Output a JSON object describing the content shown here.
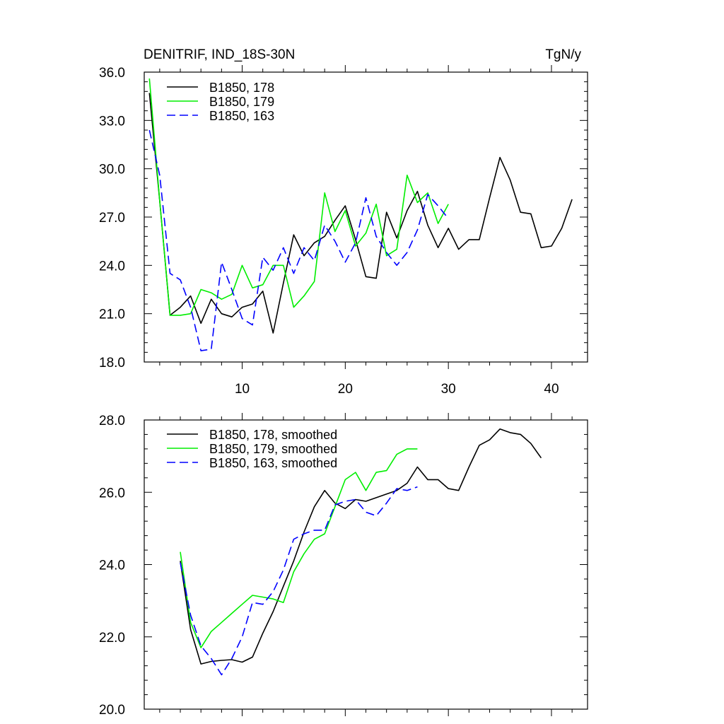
{
  "chart_data": [
    {
      "type": "line",
      "title": "DENITRIF, IND_18S-30N",
      "units": "TgN/y",
      "xlabel": "",
      "ylabel": "",
      "xlim": [
        0.5,
        43.5
      ],
      "ylim": [
        18.0,
        36.0
      ],
      "xticks": [
        10,
        20,
        30,
        40
      ],
      "xtick_labels": [
        "10",
        "20",
        "30",
        "40"
      ],
      "yticks": [
        18,
        21,
        24,
        27,
        30,
        33,
        36
      ],
      "ytick_labels": [
        "18.0",
        "21.0",
        "24.0",
        "27.0",
        "30.0",
        "33.0",
        "36.0"
      ],
      "grid": false,
      "legend_position": "top-left",
      "series": [
        {
          "name": "B1850, 178",
          "color": "#000000",
          "dash": "solid",
          "x": [
            1,
            2,
            3,
            4,
            5,
            6,
            7,
            8,
            9,
            10,
            11,
            12,
            13,
            14,
            15,
            16,
            17,
            18,
            19,
            20,
            21,
            22,
            23,
            24,
            25,
            26,
            27,
            28,
            29,
            30,
            31,
            32,
            33,
            34,
            35,
            36,
            37,
            38,
            39,
            40,
            41,
            42
          ],
          "values": [
            34.7,
            28.0,
            20.9,
            21.4,
            22.1,
            20.4,
            21.9,
            21.0,
            20.8,
            21.4,
            21.6,
            22.4,
            19.8,
            22.9,
            25.9,
            24.6,
            25.4,
            25.8,
            26.8,
            27.7,
            25.6,
            23.3,
            23.2,
            27.3,
            25.7,
            27.4,
            28.6,
            26.5,
            25.1,
            26.3,
            25.0,
            25.6,
            25.6,
            28.2,
            30.7,
            29.3,
            27.3,
            27.2,
            25.1,
            25.2,
            26.3,
            28.1
          ]
        },
        {
          "name": "B1850, 179",
          "color": "#00ee00",
          "dash": "solid",
          "x": [
            1,
            2,
            3,
            4,
            5,
            6,
            7,
            8,
            9,
            10,
            11,
            12,
            13,
            14,
            15,
            16,
            17,
            18,
            19,
            20,
            21,
            22,
            23,
            24,
            25,
            26,
            27,
            28,
            29,
            30
          ],
          "values": [
            35.6,
            28.0,
            20.9,
            20.9,
            21.0,
            22.5,
            22.3,
            21.9,
            22.2,
            24.0,
            22.6,
            22.8,
            24.0,
            24.0,
            21.4,
            22.1,
            23.0,
            28.5,
            26.1,
            27.4,
            25.2,
            26.0,
            27.8,
            24.6,
            25.0,
            29.6,
            27.9,
            28.5,
            26.6,
            27.8
          ]
        },
        {
          "name": "B1850, 163",
          "color": "#0000ff",
          "dash": "dashed",
          "x": [
            1,
            2,
            3,
            4,
            5,
            6,
            7,
            8,
            9,
            10,
            11,
            12,
            13,
            14,
            15,
            16,
            17,
            18,
            19,
            20,
            21,
            22,
            23,
            24,
            25,
            26,
            27,
            28,
            29,
            30
          ],
          "values": [
            32.4,
            29.6,
            23.5,
            23.1,
            21.4,
            18.7,
            18.8,
            24.2,
            22.5,
            20.7,
            20.3,
            24.5,
            23.7,
            25.1,
            23.5,
            25.1,
            24.3,
            26.5,
            25.5,
            24.2,
            25.4,
            28.2,
            25.8,
            24.8,
            24.0,
            24.8,
            26.2,
            28.4,
            27.7,
            26.9
          ]
        }
      ]
    },
    {
      "type": "line",
      "title": "",
      "xlabel": "",
      "ylabel": "",
      "xlim": [
        0.5,
        43.5
      ],
      "ylim": [
        20.0,
        28.0
      ],
      "xticks": [
        10,
        20,
        30,
        40
      ],
      "yticks": [
        20,
        22,
        24,
        26,
        28
      ],
      "ytick_labels": [
        "20.0",
        "22.0",
        "24.0",
        "26.0",
        "28.0"
      ],
      "grid": false,
      "legend_position": "top-left",
      "series": [
        {
          "name": "B1850, 178, smoothed",
          "color": "#000000",
          "dash": "solid",
          "x": [
            4,
            5,
            6,
            7,
            8,
            9,
            10,
            11,
            12,
            13,
            14,
            15,
            16,
            17,
            18,
            19,
            20,
            21,
            22,
            23,
            24,
            25,
            26,
            27,
            28,
            29,
            30,
            31,
            32,
            33,
            34,
            35,
            36,
            37,
            38,
            39
          ],
          "values": [
            24.1,
            22.2,
            21.25,
            21.32,
            21.35,
            21.37,
            21.3,
            21.44,
            22.1,
            22.7,
            23.4,
            24.1,
            24.9,
            25.6,
            26.05,
            25.7,
            25.55,
            25.8,
            25.75,
            25.85,
            25.95,
            26.05,
            26.25,
            26.7,
            26.35,
            26.35,
            26.1,
            26.05,
            26.7,
            27.3,
            27.45,
            27.75,
            27.65,
            27.6,
            27.35,
            26.95
          ]
        },
        {
          "name": "B1850, 179, smoothed",
          "color": "#00ee00",
          "dash": "solid",
          "x": [
            4,
            5,
            6,
            7,
            8,
            9,
            10,
            11,
            12,
            13,
            14,
            15,
            16,
            17,
            18,
            19,
            20,
            21,
            22,
            23,
            24,
            25,
            26,
            27
          ],
          "values": [
            24.35,
            22.4,
            21.7,
            22.15,
            22.4,
            22.65,
            22.9,
            23.15,
            23.1,
            23.05,
            22.95,
            23.8,
            24.3,
            24.7,
            24.85,
            25.6,
            26.35,
            26.55,
            26.05,
            26.55,
            26.6,
            27.05,
            27.2,
            27.2
          ]
        },
        {
          "name": "B1850, 163, smoothed",
          "color": "#0000ff",
          "dash": "dashed",
          "x": [
            4,
            5,
            6,
            7,
            8,
            9,
            10,
            11,
            12,
            13,
            14,
            15,
            16,
            17,
            18,
            19,
            20,
            21,
            22,
            23,
            24,
            25,
            26,
            27
          ],
          "values": [
            24.05,
            22.6,
            21.75,
            21.4,
            20.95,
            21.4,
            22.0,
            22.95,
            22.9,
            23.25,
            23.85,
            24.7,
            24.85,
            24.95,
            24.95,
            25.65,
            25.75,
            25.8,
            25.45,
            25.35,
            25.7,
            26.1,
            26.05,
            26.15
          ]
        }
      ]
    }
  ]
}
